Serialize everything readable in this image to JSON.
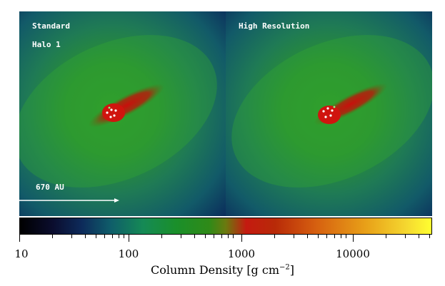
{
  "panels": {
    "left": {
      "title": "Standard",
      "subtitle": "Halo 1"
    },
    "right": {
      "title": "High Resolution"
    }
  },
  "scale_bar": {
    "label": "670 AU"
  },
  "colorbar": {
    "ticks": [
      "10",
      "100",
      "1000",
      "10000"
    ],
    "title_main": "Column Density [g cm",
    "title_exp": "−2",
    "title_end": "]"
  }
}
